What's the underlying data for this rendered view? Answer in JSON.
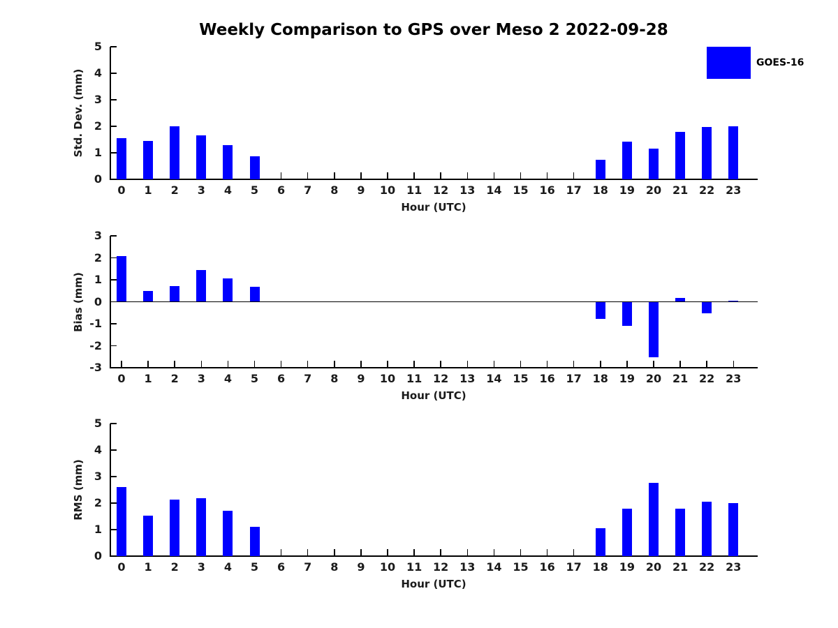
{
  "title": "Weekly Comparison to GPS over Meso 2 2022-09-28",
  "legend": {
    "label": "GOES-16",
    "color": "#0000ff"
  },
  "colors": {
    "bar": "#0000ff",
    "axis": "#000000",
    "text": "#1a1a1a",
    "background": "#ffffff"
  },
  "chart_data": [
    {
      "type": "bar",
      "title": "",
      "ylabel": "Std. Dev. (mm)",
      "xlabel": "Hour (UTC)",
      "ylim": [
        0,
        5
      ],
      "yticks": [
        0,
        1,
        2,
        3,
        4,
        5
      ],
      "grid": false,
      "legend_position": "upper right outside",
      "categories": [
        "0",
        "1",
        "2",
        "3",
        "4",
        "5",
        "6",
        "7",
        "8",
        "9",
        "10",
        "11",
        "12",
        "13",
        "14",
        "15",
        "16",
        "17",
        "18",
        "19",
        "20",
        "21",
        "22",
        "23"
      ],
      "series": [
        {
          "name": "GOES-16",
          "values": [
            1.55,
            1.45,
            2.0,
            1.65,
            1.3,
            0.88,
            0,
            0,
            0,
            0,
            0,
            0,
            0,
            0,
            0,
            0,
            0,
            0,
            0.75,
            1.42,
            1.15,
            1.78,
            1.97,
            2.0
          ]
        }
      ]
    },
    {
      "type": "bar",
      "title": "",
      "ylabel": "Bias (mm)",
      "xlabel": "Hour (UTC)",
      "ylim": [
        -3,
        3
      ],
      "yticks": [
        -3,
        -2,
        -1,
        0,
        1,
        2,
        3
      ],
      "grid": false,
      "categories": [
        "0",
        "1",
        "2",
        "3",
        "4",
        "5",
        "6",
        "7",
        "8",
        "9",
        "10",
        "11",
        "12",
        "13",
        "14",
        "15",
        "16",
        "17",
        "18",
        "19",
        "20",
        "21",
        "22",
        "23"
      ],
      "series": [
        {
          "name": "GOES-16",
          "values": [
            2.08,
            0.48,
            0.72,
            1.45,
            1.05,
            0.68,
            0,
            0,
            0,
            0,
            0,
            0,
            0,
            0,
            0,
            0,
            0,
            0,
            -0.78,
            -1.08,
            -2.52,
            0.16,
            -0.52,
            0.05
          ]
        }
      ]
    },
    {
      "type": "bar",
      "title": "",
      "ylabel": "RMS (mm)",
      "xlabel": "Hour (UTC)",
      "ylim": [
        0,
        5
      ],
      "yticks": [
        0,
        1,
        2,
        3,
        4,
        5
      ],
      "grid": false,
      "categories": [
        "0",
        "1",
        "2",
        "3",
        "4",
        "5",
        "6",
        "7",
        "8",
        "9",
        "10",
        "11",
        "12",
        "13",
        "14",
        "15",
        "16",
        "17",
        "18",
        "19",
        "20",
        "21",
        "22",
        "23"
      ],
      "series": [
        {
          "name": "GOES-16",
          "values": [
            2.6,
            1.52,
            2.12,
            2.18,
            1.7,
            1.1,
            0,
            0,
            0,
            0,
            0,
            0,
            0,
            0,
            0,
            0,
            0,
            0,
            1.05,
            1.8,
            2.77,
            1.8,
            2.05,
            2.0
          ]
        }
      ]
    }
  ]
}
